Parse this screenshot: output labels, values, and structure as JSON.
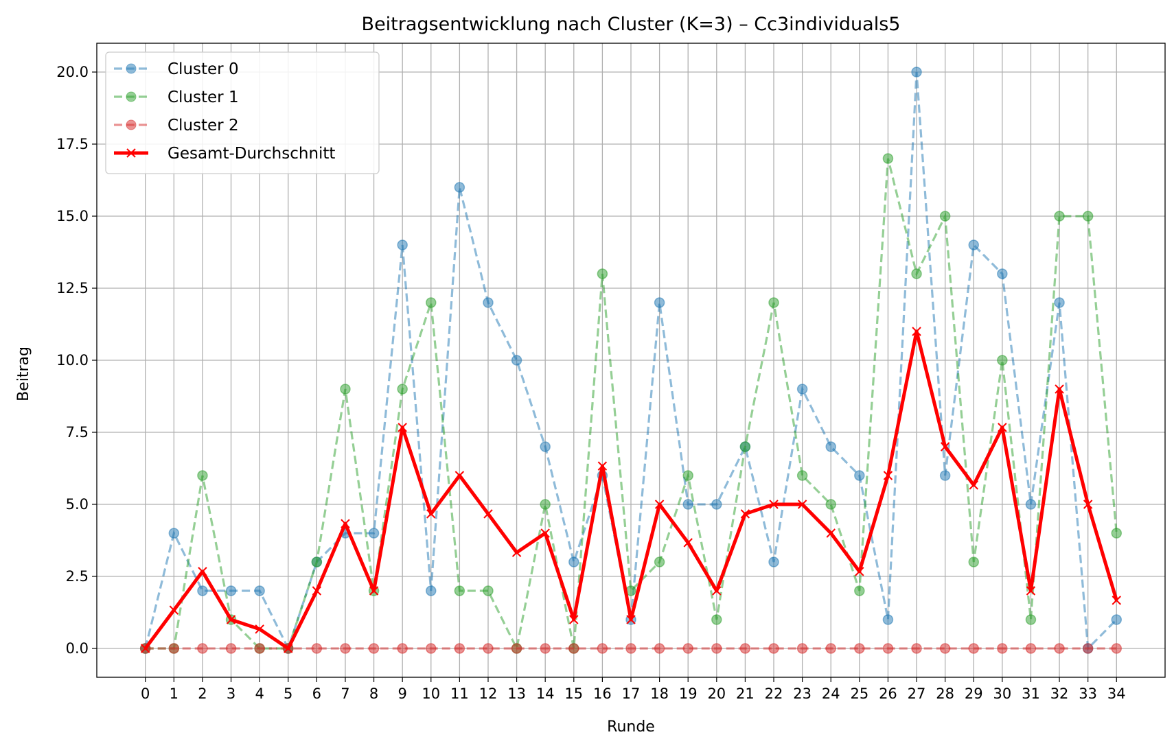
{
  "chart_data": {
    "type": "line",
    "title": "Beitragsentwicklung nach Cluster (K=3) – Cc3individuals5",
    "xlabel": "Runde",
    "ylabel": "Beitrag",
    "x": [
      0,
      1,
      2,
      3,
      4,
      5,
      6,
      7,
      8,
      9,
      10,
      11,
      12,
      13,
      14,
      15,
      16,
      17,
      18,
      19,
      20,
      21,
      22,
      23,
      24,
      25,
      26,
      27,
      28,
      29,
      30,
      31,
      32,
      33,
      34
    ],
    "xlim": [
      -1.7,
      35.7
    ],
    "ylim": [
      -1.0,
      21.0
    ],
    "yticks": [
      0.0,
      2.5,
      5.0,
      7.5,
      10.0,
      12.5,
      15.0,
      17.5,
      20.0
    ],
    "yticklabels": [
      "0.0",
      "2.5",
      "5.0",
      "7.5",
      "10.0",
      "12.5",
      "15.0",
      "17.5",
      "20.0"
    ],
    "grid": true,
    "legend_position": "top-left",
    "series": [
      {
        "name": "Cluster 0",
        "color": "#1f77b4",
        "style": "dashed-circle",
        "values": [
          0,
          4,
          2,
          2,
          2,
          0,
          3,
          4,
          4,
          14,
          2,
          16,
          12,
          10,
          7,
          3,
          6,
          1,
          12,
          5,
          5,
          7,
          3,
          9,
          7,
          6,
          1,
          20,
          6,
          14,
          13,
          5,
          12,
          0,
          1
        ]
      },
      {
        "name": "Cluster 1",
        "color": "#2ca02c",
        "style": "dashed-circle",
        "values": [
          0,
          0,
          6,
          1,
          0,
          0,
          3,
          9,
          2,
          9,
          12,
          2,
          2,
          0,
          5,
          0,
          13,
          2,
          3,
          6,
          1,
          7,
          12,
          6,
          5,
          2,
          17,
          13,
          15,
          3,
          10,
          1,
          15,
          15,
          4
        ]
      },
      {
        "name": "Cluster 2",
        "color": "#d62728",
        "style": "dashed-circle",
        "values": [
          0,
          0,
          0,
          0,
          0,
          0,
          0,
          0,
          0,
          0,
          0,
          0,
          0,
          0,
          0,
          0,
          0,
          0,
          0,
          0,
          0,
          0,
          0,
          0,
          0,
          0,
          0,
          0,
          0,
          0,
          0,
          0,
          0,
          0,
          0
        ]
      },
      {
        "name": "Gesamt-Durchschnitt",
        "color": "#ff0000",
        "style": "solid-x",
        "values": [
          0,
          1.33,
          2.67,
          1,
          0.67,
          0,
          2,
          4.33,
          2,
          7.67,
          4.67,
          6,
          4.67,
          3.33,
          4,
          1,
          6.33,
          1,
          5,
          3.67,
          2,
          4.67,
          5,
          5,
          4,
          2.67,
          6,
          11,
          7,
          5.67,
          7.67,
          2,
          9,
          5,
          1.67
        ]
      }
    ]
  }
}
